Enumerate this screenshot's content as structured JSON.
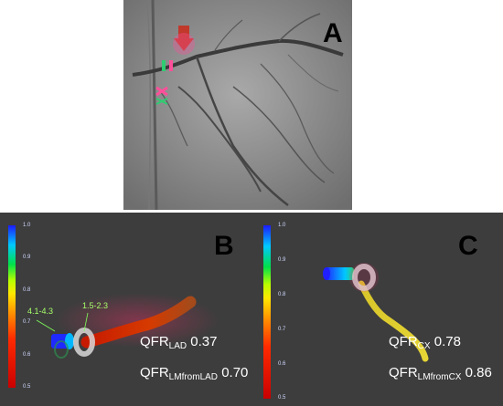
{
  "panels": {
    "a": {
      "label": "A"
    },
    "b": {
      "label": "B",
      "scale_ticks": [
        "1.0",
        "0.9",
        "0.8",
        "0.7",
        "0.6",
        "0.5"
      ],
      "annotations": [
        "4.1-4.3",
        "1.5-2.3"
      ],
      "qfr1": {
        "prefix": "QFR",
        "sub": "LAD",
        "value": "0.37"
      },
      "qfr2": {
        "prefix": "QFR",
        "sub": "LMfromLAD",
        "value": "0.70"
      }
    },
    "c": {
      "label": "C",
      "scale_ticks": [
        "1.0",
        "0.9",
        "0.8",
        "0.7",
        "0.6",
        "0.5"
      ],
      "qfr1": {
        "prefix": "QFR",
        "sub": "CX",
        "value": "0.78"
      },
      "qfr2": {
        "prefix": "QFR",
        "sub": "LMfromCX",
        "value": "0.86"
      }
    }
  },
  "colors": {
    "angiogram_bg": "#8e8e8e",
    "model_bg": "#3d3d3d",
    "arrow": "#c0392b",
    "marker_pink": "#ff4f9a",
    "marker_green": "#2ecc71"
  }
}
